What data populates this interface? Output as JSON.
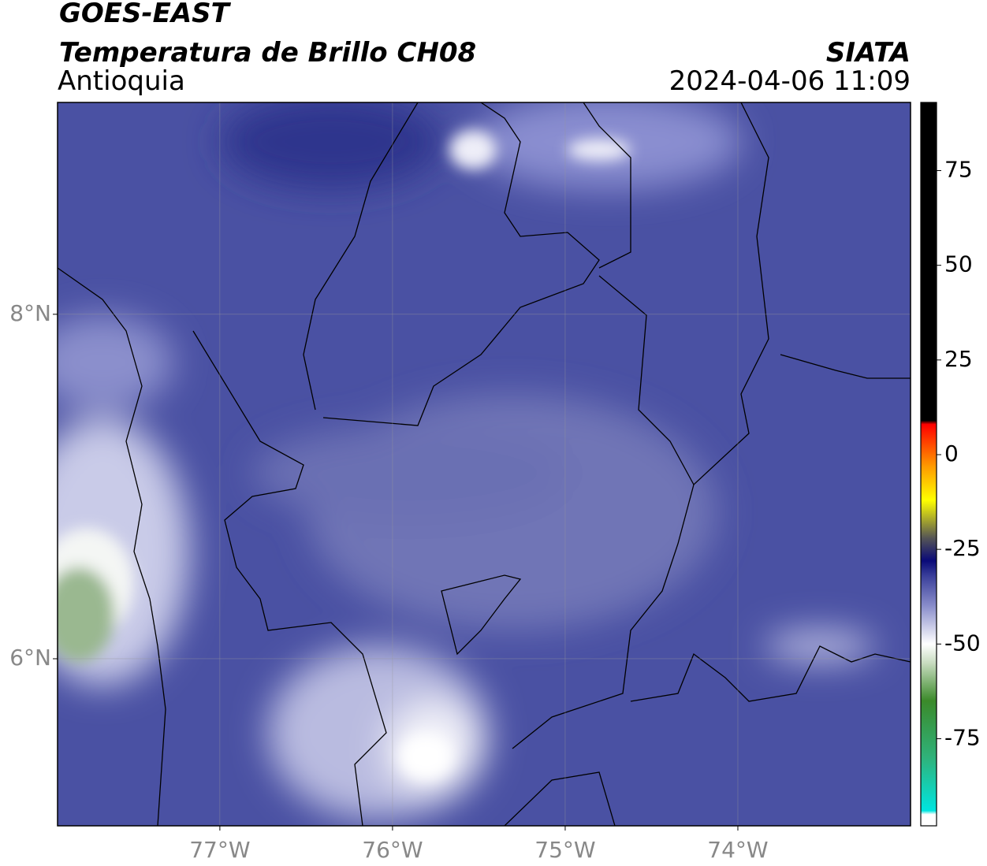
{
  "header": {
    "title": "GOES-EAST",
    "subtitle": "Temperatura de Brillo CH08",
    "region": "Antioquia",
    "source": "SIATA",
    "datetime": "2024-04-06 11:09"
  },
  "map": {
    "xlim": [
      -77.94,
      -73.0
    ],
    "ylim": [
      5.03,
      9.23
    ],
    "xticks": [
      {
        "value": -77,
        "label": "77°W"
      },
      {
        "value": -76,
        "label": "76°W"
      },
      {
        "value": -75,
        "label": "75°W"
      },
      {
        "value": -74,
        "label": "74°W"
      }
    ],
    "yticks": [
      {
        "value": 6,
        "label": "6°N"
      },
      {
        "value": 8,
        "label": "8°N"
      }
    ],
    "grid": true
  },
  "colorbar": {
    "lim": [
      -98,
      93
    ],
    "ticks": [
      75,
      50,
      25,
      0,
      -25,
      -50,
      -75
    ],
    "stops": [
      {
        "value": -98,
        "color": "#ffffff"
      },
      {
        "value": -95,
        "color": "#ffffff"
      },
      {
        "value": -94,
        "color": "#00e5e0"
      },
      {
        "value": -80,
        "color": "#2fb27a"
      },
      {
        "value": -65,
        "color": "#3b8a2a"
      },
      {
        "value": -55,
        "color": "#c8dcc0"
      },
      {
        "value": -50,
        "color": "#ffffff"
      },
      {
        "value": -40,
        "color": "#8a8ecb"
      },
      {
        "value": -32,
        "color": "#3a3f9a"
      },
      {
        "value": -28,
        "color": "#0a0a78"
      },
      {
        "value": -22,
        "color": "#555555"
      },
      {
        "value": -12,
        "color": "#ffff00"
      },
      {
        "value": -3,
        "color": "#ff9900"
      },
      {
        "value": 8,
        "color": "#ff0000"
      },
      {
        "value": 9,
        "color": "#000000"
      },
      {
        "value": 93,
        "color": "#000000"
      }
    ]
  }
}
